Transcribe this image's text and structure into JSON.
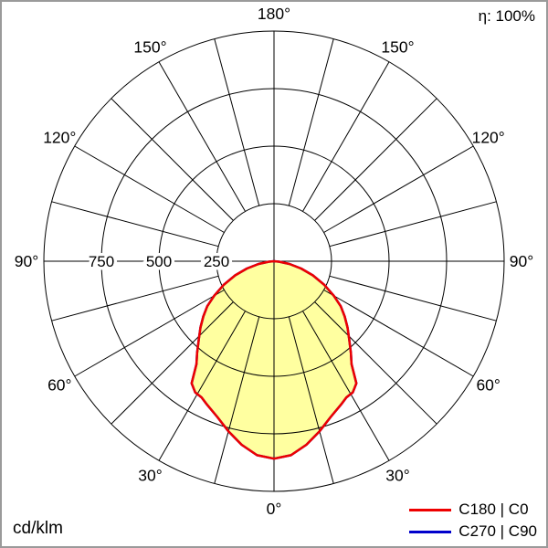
{
  "header": {
    "efficiency_label": "η: 100%"
  },
  "footer": {
    "unit_label": "cd/klm"
  },
  "legend": [
    {
      "label": "C180 | C0",
      "color": "#ee0000"
    },
    {
      "label": "C270 | C90",
      "color": "#0000cc"
    }
  ],
  "chart_data": {
    "type": "polar",
    "subtype": "luminous-intensity-distribution",
    "unit": "cd/klm",
    "orientation": "0-deg-at-bottom",
    "angle_grid_step": 15,
    "angle_ticks": [
      {
        "deg": 0,
        "label": "0°"
      },
      {
        "deg": 30,
        "label": "30°"
      },
      {
        "deg": 60,
        "label": "60°"
      },
      {
        "deg": 90,
        "label": "90°"
      },
      {
        "deg": 120,
        "label": "120°"
      },
      {
        "deg": 150,
        "label": "150°"
      },
      {
        "deg": 180,
        "label": "180°"
      }
    ],
    "radial_ticks": [
      {
        "value": 250,
        "label": "250"
      },
      {
        "value": 500,
        "label": "500"
      },
      {
        "value": 750,
        "label": "750"
      }
    ],
    "radial_max": 1000,
    "efficiency_percent": 100,
    "series": [
      {
        "name": "C180 | C0",
        "color": "#ee0000",
        "fill": "#ffffa0",
        "symmetric": true,
        "gamma": [
          0,
          5,
          10,
          15,
          20,
          25,
          28,
          31,
          34,
          37,
          40,
          44,
          48,
          52,
          56,
          60,
          65,
          70,
          75,
          80,
          85,
          90
        ],
        "values": [
          858,
          846,
          810,
          765,
          720,
          688,
          670,
          665,
          640,
          560,
          520,
          470,
          430,
          390,
          350,
          300,
          240,
          180,
          122,
          68,
          22,
          0
        ]
      },
      {
        "name": "C270 | C90",
        "color": "#0000cc",
        "fill": null,
        "symmetric": true,
        "gamma": [
          0,
          5,
          10,
          15,
          20,
          25,
          28,
          31,
          34,
          37,
          40,
          44,
          48,
          52,
          56,
          60,
          65,
          70,
          75,
          80,
          85,
          90
        ],
        "values": [
          858,
          846,
          810,
          765,
          720,
          688,
          670,
          665,
          640,
          560,
          520,
          470,
          430,
          390,
          350,
          300,
          240,
          180,
          122,
          68,
          22,
          0
        ]
      }
    ]
  }
}
